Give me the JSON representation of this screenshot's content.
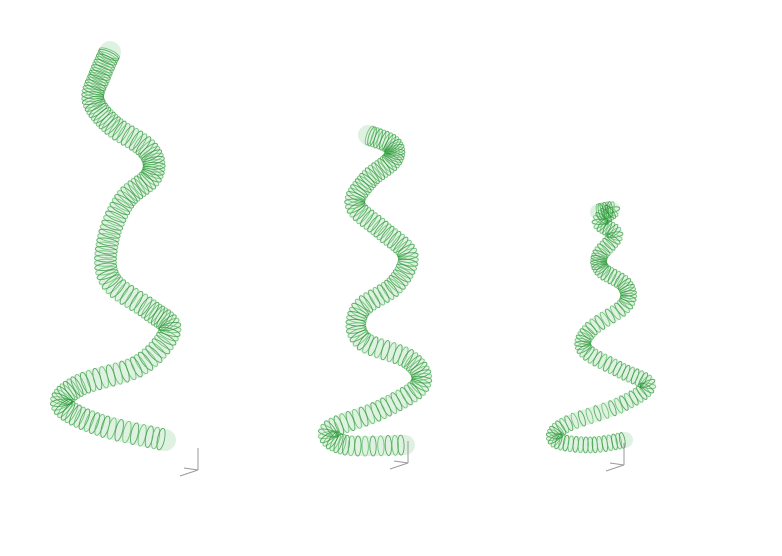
{
  "scene": {
    "background": "#ffffff",
    "coil_color": "#4fb85a",
    "coil_edge_color": "#2f8f3a",
    "axis_color": "#9a9a9a",
    "helices": [
      {
        "name": "helix-large",
        "axis_icon": "axis-triad-icon"
      },
      {
        "name": "helix-medium",
        "axis_icon": "axis-triad-icon"
      },
      {
        "name": "helix-small",
        "axis_icon": "axis-triad-icon"
      }
    ]
  }
}
